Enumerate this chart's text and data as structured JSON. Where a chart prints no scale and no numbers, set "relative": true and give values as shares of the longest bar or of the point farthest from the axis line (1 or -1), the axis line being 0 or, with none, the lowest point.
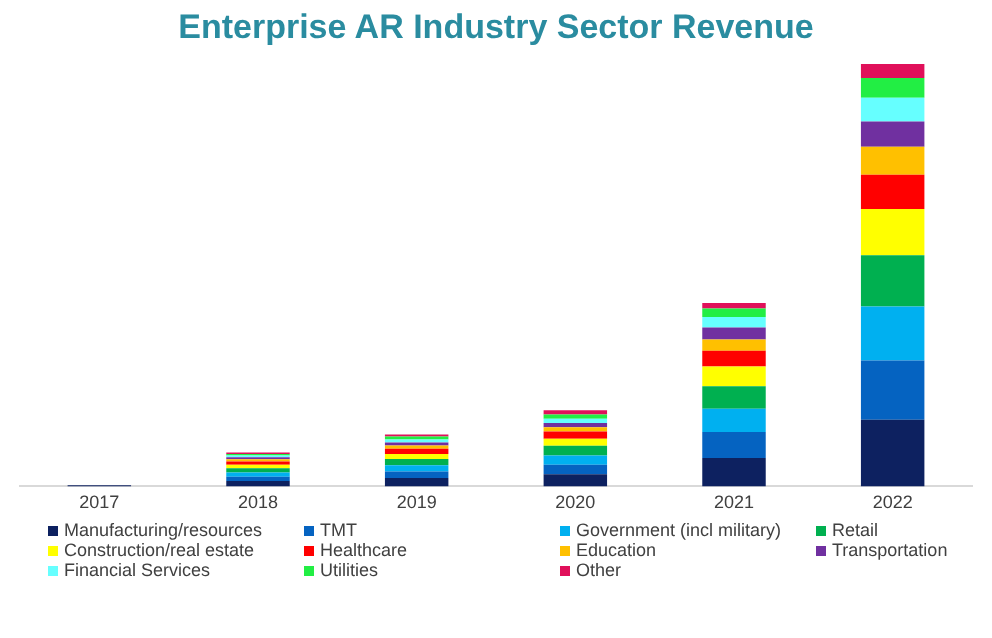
{
  "chart_data": {
    "type": "bar",
    "title": "Enterprise AR Industry Sector Revenue",
    "stacked": true,
    "relative": true,
    "legend": "bottom",
    "grid": false,
    "categories": [
      "2017",
      "2018",
      "2019",
      "2020",
      "2021",
      "2022"
    ],
    "series": [
      {
        "name": "Manufacturing/resources",
        "color": "#0d2160",
        "values": [
          0.003,
          0.013,
          0.02,
          0.029,
          0.067,
          0.158
        ]
      },
      {
        "name": "TMT",
        "color": "#0563c1",
        "values": [
          null,
          0.01,
          0.015,
          0.022,
          0.062,
          0.14
        ]
      },
      {
        "name": "Government (incl military)",
        "color": "#00b0f0",
        "values": [
          null,
          0.01,
          0.015,
          0.022,
          0.055,
          0.128
        ]
      },
      {
        "name": "Retail",
        "color": "#00b050",
        "values": [
          null,
          0.01,
          0.015,
          0.023,
          0.053,
          0.121
        ]
      },
      {
        "name": "Construction/real estate",
        "color": "#ffff00",
        "values": [
          null,
          0.008,
          0.012,
          0.017,
          0.047,
          0.11
        ]
      },
      {
        "name": "Healthcare",
        "color": "#ff0000",
        "values": [
          null,
          0.008,
          0.012,
          0.017,
          0.037,
          0.081
        ]
      },
      {
        "name": "Education",
        "color": "#ffc000",
        "values": [
          null,
          0.005,
          0.008,
          0.01,
          0.027,
          0.066
        ]
      },
      {
        "name": "Transportation",
        "color": "#7030a0",
        "values": [
          null,
          0.005,
          0.007,
          0.01,
          0.028,
          0.06
        ]
      },
      {
        "name": "Financial Services",
        "color": "#66ffff",
        "values": [
          null,
          0.004,
          0.007,
          0.01,
          0.025,
          0.056
        ]
      },
      {
        "name": "Utilities",
        "color": "#22ee44",
        "values": [
          null,
          0.004,
          0.007,
          0.01,
          0.02,
          0.047
        ]
      },
      {
        "name": "Other",
        "color": "#e0105a",
        "values": [
          null,
          0.003,
          0.005,
          0.01,
          0.013,
          0.033
        ]
      }
    ]
  }
}
